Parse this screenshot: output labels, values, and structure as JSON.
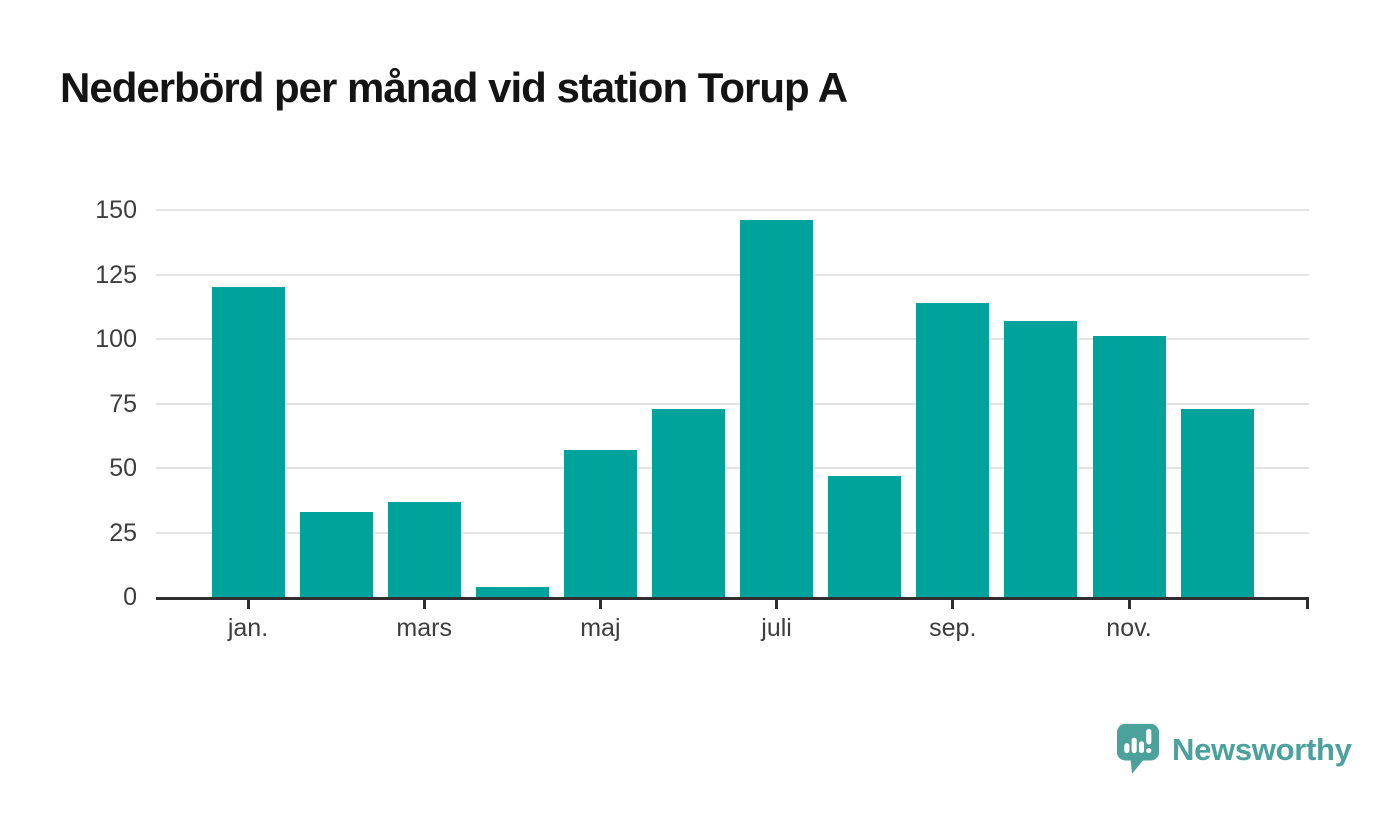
{
  "header": {
    "title": "Nederbörd per månad vid station Torup A"
  },
  "chart_data": {
    "type": "bar",
    "title": "Nederbörd per månad vid station Torup A",
    "values": [
      120,
      33,
      37,
      4,
      57,
      73,
      146,
      47,
      114,
      107,
      101,
      73
    ],
    "x_tick_labels": [
      "jan.",
      "mars",
      "maj",
      "juli",
      "sep.",
      "nov."
    ],
    "x_tick_bar_indices": [
      0,
      2,
      4,
      6,
      8,
      10
    ],
    "yticks": [
      0,
      25,
      50,
      75,
      100,
      125,
      150
    ],
    "ylim": [
      0,
      150
    ],
    "xlabel": "",
    "ylabel": "",
    "grid": true,
    "legend_position": "none",
    "bar_color": "#00a39b"
  },
  "colors": {
    "bar": "#00a39b",
    "gridline": "#e4e4e4",
    "axis": "#2f2f2f",
    "tick_label": "#3d3d3d",
    "title": "#141414",
    "logo": "#4ba19b",
    "background": "#ffffff"
  },
  "logo": {
    "name": "Newsworthy",
    "icon": "speech-bubble-bar-chart"
  }
}
